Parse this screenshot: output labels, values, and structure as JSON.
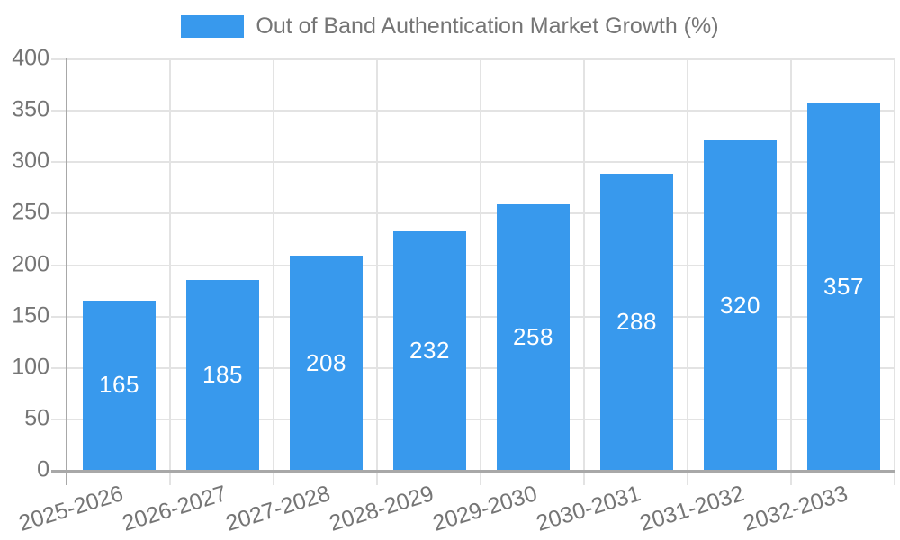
{
  "chart_data": {
    "type": "bar",
    "title": "Out of Band Authentication Market Growth (%)",
    "categories": [
      "2025-2026",
      "2026-2027",
      "2027-2028",
      "2028-2029",
      "2029-2030",
      "2030-2031",
      "2031-2032",
      "2032-2033"
    ],
    "values": [
      165,
      185,
      208,
      232,
      258,
      288,
      320,
      357
    ],
    "value_labels_shown": true,
    "xlabel": "",
    "ylabel": "",
    "ylim": [
      0,
      400
    ],
    "yticks": [
      0,
      50,
      100,
      150,
      200,
      250,
      300,
      350,
      400
    ],
    "grid": true,
    "legend_position": "top",
    "colors": {
      "bar": "#3899ed",
      "grid": "#e3e3e3",
      "axis": "#a8a8a8",
      "text": "#757575",
      "value_text": "#ffffff",
      "background": "#ffffff"
    }
  }
}
